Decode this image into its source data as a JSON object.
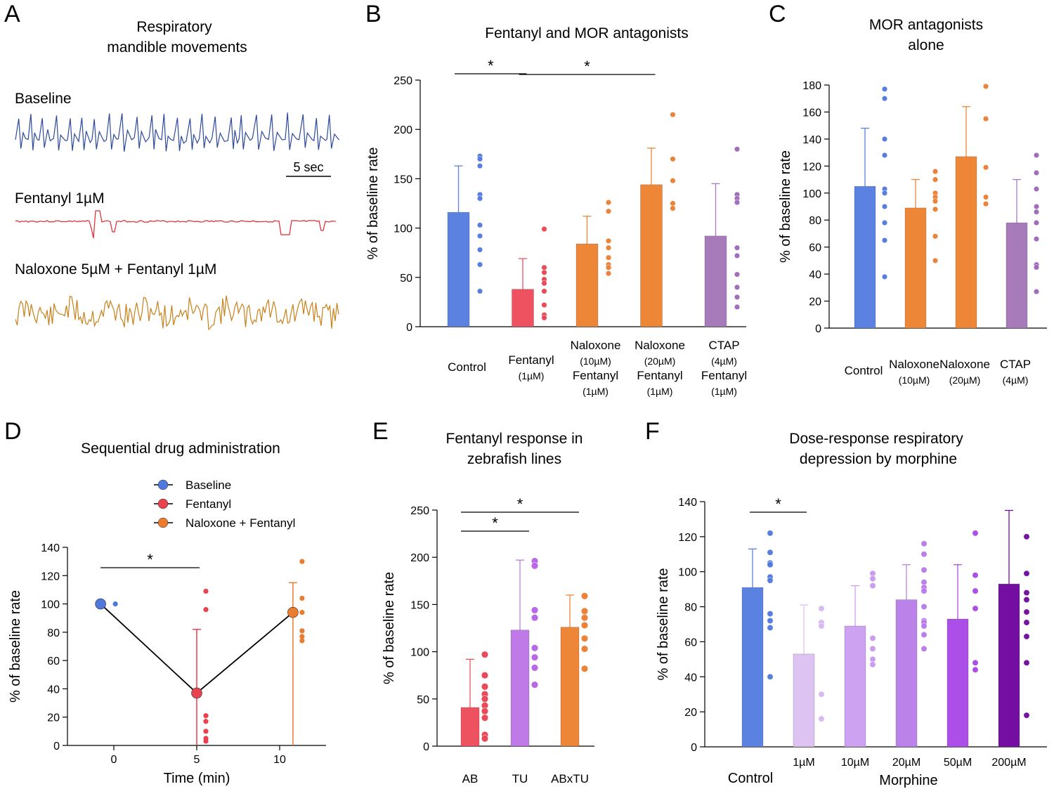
{
  "panel_A": {
    "label": "A",
    "title": [
      "Respiratory",
      "mandible movements"
    ],
    "traces": [
      {
        "name": "Baseline",
        "color": "#2c4a9c"
      },
      {
        "name": "Fentanyl 1µM",
        "color": "#e0262f"
      },
      {
        "name": "Naloxone 5µM + Fentanyl 1µM",
        "color": "#c9801a"
      }
    ],
    "scale_bar": "5 sec"
  },
  "chart_data": [
    {
      "panel": "B",
      "type": "bar",
      "title": "Fentanyl and MOR antagonists",
      "ylabel": "% of baseline rate",
      "ylim": [
        0,
        250
      ],
      "yticks": [
        0,
        50,
        100,
        150,
        200,
        250
      ],
      "categories": [
        {
          "lines": [
            "Control"
          ],
          "mean": 116,
          "err": 163,
          "color": "#5b82e0",
          "dot_color": "#4f78dc",
          "points": [
            173,
            170,
            163,
            134,
            130,
            103,
            92,
            78,
            63,
            36
          ]
        },
        {
          "lines": [
            "Fentanyl",
            "(1µM)"
          ],
          "mean": 38,
          "err": 69,
          "color": "#ee5160",
          "dot_color": "#e8424f",
          "points": [
            99,
            60,
            55,
            48,
            44,
            36,
            22,
            12,
            9
          ]
        },
        {
          "lines": [
            "Naloxone",
            "(10µM)",
            "Fentanyl",
            "(1µM)"
          ],
          "mean": 84,
          "err": 112,
          "color": "#ee8638",
          "dot_color": "#ea7c30",
          "points": [
            126,
            117,
            87,
            80,
            70,
            63,
            60,
            54
          ]
        },
        {
          "lines": [
            "Naloxone",
            "(20µM)",
            "Fentanyl",
            "(1µM)"
          ],
          "mean": 144,
          "err": 181,
          "color": "#ee8638",
          "dot_color": "#ea7c30",
          "points": [
            215,
            170,
            148,
            125,
            120
          ]
        },
        {
          "lines": [
            "CTAP",
            "(4µM)",
            "Fentanyl",
            "(1µM)"
          ],
          "mean": 92,
          "err": 145,
          "color": "#a77ab9",
          "dot_color": "#9c66b8",
          "points": [
            180,
            134,
            130,
            126,
            80,
            72,
            53,
            40,
            30,
            20
          ]
        }
      ],
      "significance": [
        {
          "from": 0,
          "to": 1,
          "label": "*"
        },
        {
          "from": 1,
          "to": 3,
          "label": "*"
        }
      ]
    },
    {
      "panel": "C",
      "type": "bar",
      "title": [
        "MOR antagonists",
        "alone"
      ],
      "ylabel": "% of baseline rate",
      "ylim": [
        0,
        180
      ],
      "yticks": [
        0,
        20,
        40,
        60,
        80,
        100,
        120,
        140,
        160,
        180
      ],
      "categories": [
        {
          "lines": [
            "Control"
          ],
          "mean": 105,
          "err": 148,
          "color": "#5b82e0",
          "dot_color": "#4f78dc",
          "points": [
            177,
            170,
            140,
            128,
            103,
            100,
            90,
            78,
            65,
            38
          ]
        },
        {
          "lines": [
            "Naloxone",
            "(10µM)"
          ],
          "mean": 89,
          "err": 110,
          "color": "#ee8638",
          "dot_color": "#ea7c30",
          "points": [
            116,
            110,
            100,
            97,
            94,
            88,
            68,
            50
          ]
        },
        {
          "lines": [
            "Naloxone",
            "(20µM)"
          ],
          "mean": 127,
          "err": 164,
          "color": "#ee8638",
          "dot_color": "#ea7c30",
          "points": [
            179,
            155,
            119,
            97,
            92
          ]
        },
        {
          "lines": [
            "CTAP",
            "(4µM)"
          ],
          "mean": 78,
          "err": 110,
          "color": "#a77ab9",
          "dot_color": "#9c66b8",
          "points": [
            128,
            115,
            103,
            90,
            86,
            78,
            66,
            47,
            45,
            27
          ]
        }
      ]
    },
    {
      "panel": "D",
      "type": "line",
      "title": "Sequential drug administration",
      "xlabel": "Time (min)",
      "ylabel": "% of baseline rate",
      "xlim": [
        -3,
        13
      ],
      "ylim": [
        0,
        140
      ],
      "xticks": [
        0,
        5,
        10
      ],
      "yticks": [
        0,
        20,
        40,
        60,
        80,
        100,
        120,
        140
      ],
      "series": [
        {
          "name": "Baseline",
          "x": -0.8,
          "mean": 100,
          "err": null,
          "color": "#4f78dc",
          "points": [
            100
          ]
        },
        {
          "name": "Fentanyl",
          "x": 5,
          "mean": 37,
          "err": 82,
          "color": "#e8424f",
          "points": [
            109,
            96,
            21,
            17,
            10,
            5,
            3
          ]
        },
        {
          "name": "Naloxone + Fentanyl",
          "x": 10.8,
          "mean": 94,
          "err": 115,
          "color": "#ea7c30",
          "points": [
            130,
            104,
            94,
            81,
            77,
            74
          ]
        }
      ],
      "significance": [
        {
          "from": -0.8,
          "to": 5,
          "label": "*"
        }
      ]
    },
    {
      "panel": "E",
      "type": "bar",
      "title": [
        "Fentanyl response in",
        "zebrafish lines"
      ],
      "ylabel": "% of baseline rate",
      "ylim": [
        0,
        250
      ],
      "yticks": [
        0,
        50,
        100,
        150,
        200,
        250
      ],
      "categories": [
        {
          "lines": [
            "AB"
          ],
          "mean": 41,
          "err": 92,
          "color": "#ee5160",
          "dot_color": "#e8424f",
          "points": [
            97,
            75,
            63,
            55,
            50,
            43,
            37,
            30,
            12,
            8
          ]
        },
        {
          "lines": [
            "TU"
          ],
          "mean": 123,
          "err": 197,
          "color": "#bf7ae8",
          "dot_color": "#b560e6",
          "points": [
            196,
            191,
            144,
            136,
            104,
            94,
            83,
            65
          ]
        },
        {
          "lines": [
            "ABxTU"
          ],
          "mean": 126,
          "err": 160,
          "color": "#ee8638",
          "dot_color": "#ea7c30",
          "points": [
            159,
            143,
            136,
            128,
            114,
            103,
            82
          ]
        }
      ],
      "significance": [
        {
          "from": 0,
          "to": 1,
          "label": "*"
        },
        {
          "from": 0,
          "to": 2,
          "label": "*"
        }
      ]
    },
    {
      "panel": "F",
      "type": "bar",
      "title": [
        "Dose-response respiratory",
        "depression by morphine"
      ],
      "ylabel": "% of baseline rate",
      "xlabel": "Morphine",
      "ylim": [
        0,
        140
      ],
      "yticks": [
        0,
        20,
        40,
        60,
        80,
        100,
        120,
        140
      ],
      "categories": [
        {
          "lines": [
            "Control"
          ],
          "mean": 91,
          "err": 113,
          "color": "#5b82e0",
          "dot_color": "#4f78dc",
          "points": [
            122,
            111,
            105,
            104,
            97,
            95,
            76,
            72,
            68,
            40
          ]
        },
        {
          "lines": [
            "1µM"
          ],
          "mean": 53,
          "err": 81,
          "color": "#dcc3f2",
          "dot_color": "#d5b6f1",
          "points": [
            79,
            71,
            69,
            30,
            16
          ]
        },
        {
          "lines": [
            "10µM"
          ],
          "mean": 69,
          "err": 92,
          "color": "#cda3f1",
          "dot_color": "#c898ee",
          "points": [
            99,
            96,
            92,
            62,
            56,
            50,
            47
          ]
        },
        {
          "lines": [
            "20µM"
          ],
          "mean": 84,
          "err": 104,
          "color": "#bb82ea",
          "dot_color": "#b677ec",
          "points": [
            116,
            110,
            101,
            94,
            91,
            89,
            80,
            72,
            71,
            69,
            64,
            56
          ]
        },
        {
          "lines": [
            "50µM"
          ],
          "mean": 73,
          "err": 104,
          "color": "#ac4fe8",
          "dot_color": "#a646e8",
          "points": [
            122,
            98,
            89,
            79,
            48,
            44
          ]
        },
        {
          "lines": [
            "200µM"
          ],
          "mean": 93,
          "err": 135,
          "color": "#740ea3",
          "dot_color": "#6c079e",
          "points": [
            120,
            99,
            88,
            84,
            77,
            71,
            63,
            48,
            18
          ]
        }
      ],
      "significance": [
        {
          "from": 0,
          "to": 1,
          "label": "*"
        }
      ]
    }
  ]
}
